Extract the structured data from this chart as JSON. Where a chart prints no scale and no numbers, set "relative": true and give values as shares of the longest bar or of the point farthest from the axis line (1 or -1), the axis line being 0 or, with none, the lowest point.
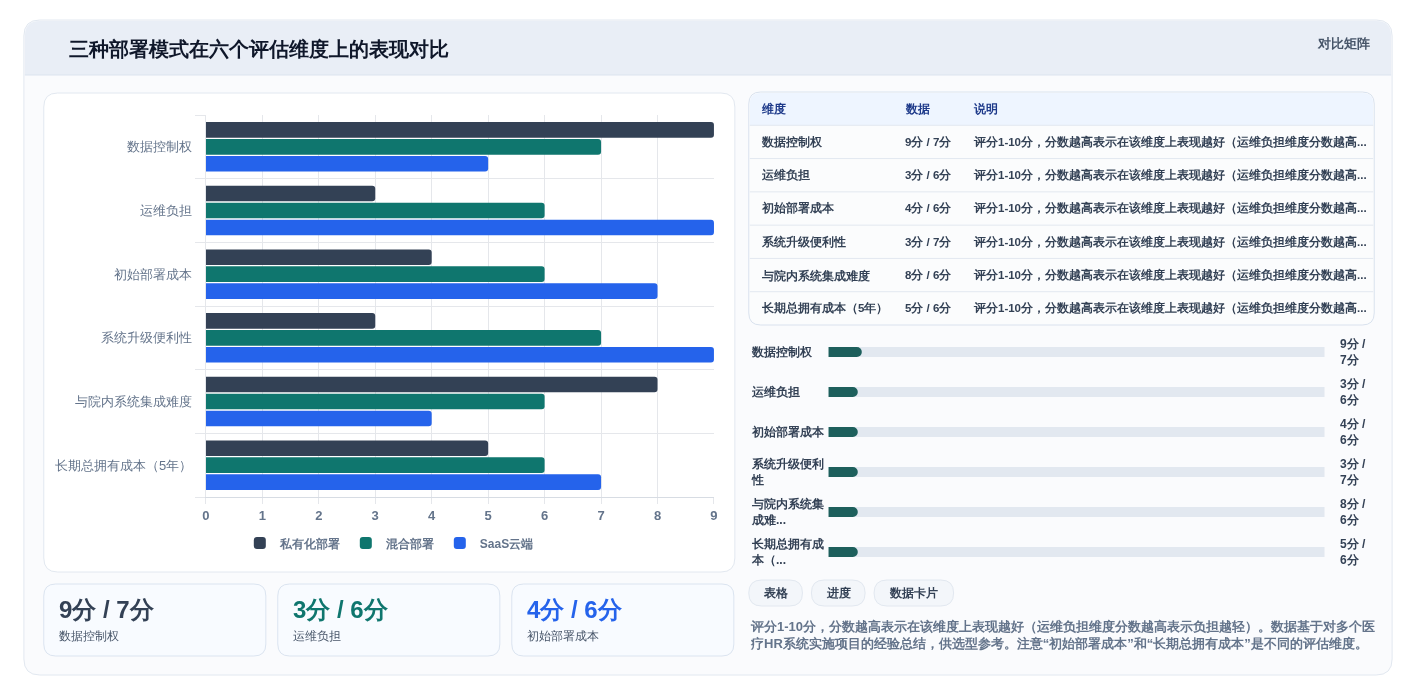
{
  "chart_data": [
    {
      "type": "other",
      "title": "三种部署模式在六个评估维度上的表现对比",
      "annotations": [
        "对比矩阵"
      ]
    },
    {
      "type": "bar",
      "orientation": "horizontal",
      "categories": [
        "数据控制权",
        "运维负担",
        "初始部署成本",
        "系统升级便利性",
        "与院内系统集成难度",
        "长期总拥有成本（5年）"
      ],
      "series": [
        {
          "name": "私有化部署",
          "color": "#334155",
          "values": [
            9,
            3,
            4,
            3,
            8,
            5
          ]
        },
        {
          "name": "混合部署",
          "color": "#0f766e",
          "values": [
            7,
            6,
            6,
            7,
            6,
            6
          ]
        },
        {
          "name": "SaaS云端",
          "color": "#2563eb",
          "values": [
            5,
            9,
            8,
            9,
            4,
            7
          ]
        }
      ],
      "xlim": [
        0,
        9
      ],
      "xticks": [
        0,
        1,
        2,
        3,
        4,
        5,
        6,
        7,
        8,
        9
      ],
      "grid": true,
      "legend": "bottom"
    },
    {
      "type": "other",
      "categories": [
        "维度",
        "数据",
        "说明"
      ],
      "cell_labels": [
        [
          "数据控制权",
          "9分 / 7分",
          "评分1-10分，分数越高表示在该维度上表现越好（运维负担维度分数越高..."
        ],
        [
          "运维负担",
          "3分 / 6分",
          "评分1-10分，分数越高表示在该维度上表现越好（运维负担维度分数越高..."
        ],
        [
          "初始部署成本",
          "4分 / 6分",
          "评分1-10分，分数越高表示在该维度上表现越好（运维负担维度分数越高..."
        ],
        [
          "系统升级便利性",
          "3分 / 7分",
          "评分1-10分，分数越高表示在该维度上表现越好（运维负担维度分数越高..."
        ],
        [
          "与院内系统集成难度",
          "8分 / 6分",
          "评分1-10分，分数越高表示在该维度上表现越好（运维负担维度分数越高..."
        ],
        [
          "长期总拥有成本（5年）",
          "5分 / 6分",
          "评分1-10分，分数越高表示在该维度上表现越好（运维负担维度分数越高..."
        ]
      ]
    },
    {
      "type": "bar",
      "orientation": "horizontal",
      "relative": true,
      "categories": [
        "数据控制权",
        "运维负担",
        "初始部署成本",
        "系统升级便利性",
        "与院内系统集成难...",
        "长期总拥有成本（..."
      ],
      "values": [
        1,
        0.88,
        0.88,
        0.88,
        0.88,
        0.88
      ],
      "color": "#1d5f5c"
    },
    {
      "type": "other",
      "annotations": [
        "9分 / 7分",
        "3分 / 6分",
        "4分 / 6分",
        "3分 / 7分",
        "8分 / 6分",
        "5分 / 6分"
      ]
    },
    {
      "type": "other",
      "categories": [
        "数据控制权",
        "运维负担",
        "初始部署成本"
      ],
      "value_labels": [
        "9分 / 7分",
        "3分 / 6分",
        "4分 / 6分"
      ],
      "colors": [
        "#334155",
        "#0f766e",
        "#2563eb"
      ]
    },
    {
      "type": "other",
      "categories": [
        "表格",
        "进度",
        "数据卡片"
      ],
      "annotations": [
        "评分1-10分，分数越高表示在该维度上表现越好（运维负担维度分数越高表示负担越轻）。数据基于对多个医疗HR系统实施项目的经验总结，供选型参考。注意“初始部署成本”和“长期总拥有成本”是不同的评估维度。"
      ]
    }
  ]
}
